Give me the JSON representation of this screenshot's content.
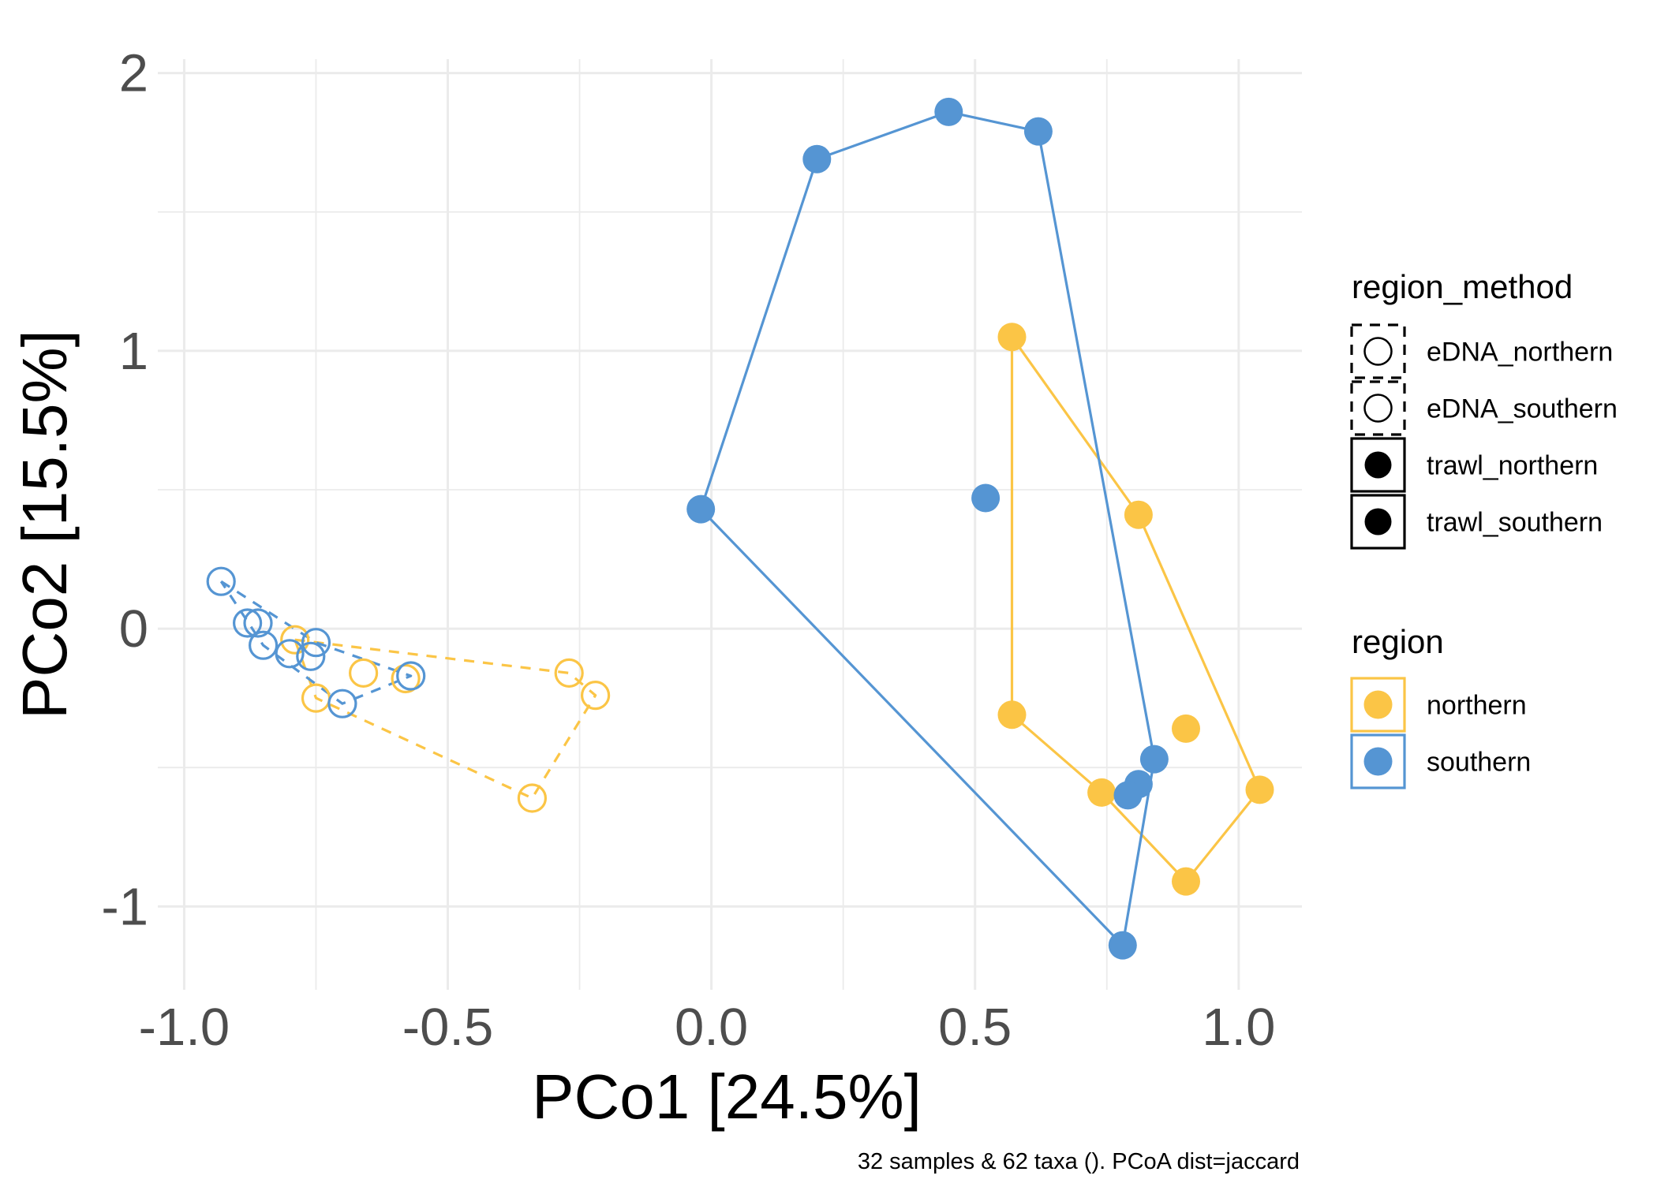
{
  "chart_data": {
    "type": "scatter",
    "title": "",
    "xlabel": "PCo1 [24.5%]",
    "ylabel": "PCo2 [15.5%]",
    "caption": "32 samples & 62 taxa (). PCoA dist=jaccard",
    "xlim": [
      -1.05,
      1.12
    ],
    "ylim": [
      -1.3,
      2.05
    ],
    "x_ticks": [
      -1.0,
      -0.5,
      0.0,
      0.5,
      1.0
    ],
    "x_tick_labels": [
      "-1.0",
      "-0.5",
      "0.0",
      "0.5",
      "1.0"
    ],
    "y_ticks": [
      -1,
      0,
      1,
      2
    ],
    "y_tick_labels": [
      "-1",
      "0",
      "1",
      "2"
    ],
    "grid": true,
    "colors": {
      "northern": "#FBC546",
      "southern": "#5595D3",
      "grid": "#EBEBEB"
    },
    "series": [
      {
        "name": "eDNA_northern",
        "region": "northern",
        "method": "eDNA",
        "marker": "open",
        "hull": "dashed",
        "points": [
          [
            -0.79,
            -0.04
          ],
          [
            -0.75,
            -0.25
          ],
          [
            -0.66,
            -0.16
          ],
          [
            -0.58,
            -0.18
          ],
          [
            -0.27,
            -0.16
          ],
          [
            -0.22,
            -0.24
          ],
          [
            -0.34,
            -0.61
          ]
        ],
        "hull_points": [
          [
            -0.79,
            -0.04
          ],
          [
            -0.27,
            -0.16
          ],
          [
            -0.22,
            -0.24
          ],
          [
            -0.34,
            -0.61
          ],
          [
            -0.75,
            -0.25
          ],
          [
            -0.79,
            -0.04
          ]
        ]
      },
      {
        "name": "eDNA_southern",
        "region": "southern",
        "method": "eDNA",
        "marker": "open",
        "hull": "dashed",
        "points": [
          [
            -0.93,
            0.17
          ],
          [
            -0.88,
            0.02
          ],
          [
            -0.86,
            0.02
          ],
          [
            -0.85,
            -0.06
          ],
          [
            -0.8,
            -0.09
          ],
          [
            -0.76,
            -0.1
          ],
          [
            -0.75,
            -0.05
          ],
          [
            -0.7,
            -0.27
          ],
          [
            -0.57,
            -0.17
          ]
        ],
        "hull_points": [
          [
            -0.93,
            0.17
          ],
          [
            -0.75,
            -0.05
          ],
          [
            -0.57,
            -0.17
          ],
          [
            -0.7,
            -0.27
          ],
          [
            -0.85,
            -0.06
          ],
          [
            -0.93,
            0.17
          ]
        ]
      },
      {
        "name": "trawl_northern",
        "region": "northern",
        "method": "trawl",
        "marker": "filled",
        "hull": "solid",
        "points": [
          [
            0.57,
            1.05
          ],
          [
            0.81,
            0.41
          ],
          [
            0.57,
            -0.31
          ],
          [
            0.9,
            -0.36
          ],
          [
            0.74,
            -0.59
          ],
          [
            1.04,
            -0.58
          ],
          [
            0.9,
            -0.91
          ]
        ],
        "hull_points": [
          [
            0.57,
            1.05
          ],
          [
            0.81,
            0.41
          ],
          [
            1.04,
            -0.58
          ],
          [
            0.9,
            -0.91
          ],
          [
            0.74,
            -0.59
          ],
          [
            0.57,
            -0.31
          ],
          [
            0.57,
            1.05
          ]
        ]
      },
      {
        "name": "trawl_southern",
        "region": "southern",
        "method": "trawl",
        "marker": "filled",
        "hull": "solid",
        "points": [
          [
            0.2,
            1.69
          ],
          [
            0.45,
            1.86
          ],
          [
            0.62,
            1.79
          ],
          [
            -0.02,
            0.43
          ],
          [
            0.52,
            0.47
          ],
          [
            0.84,
            -0.47
          ],
          [
            0.81,
            -0.56
          ],
          [
            0.79,
            -0.6
          ],
          [
            0.78,
            -1.14
          ]
        ],
        "hull_points": [
          [
            0.2,
            1.69
          ],
          [
            0.45,
            1.86
          ],
          [
            0.62,
            1.79
          ],
          [
            0.84,
            -0.47
          ],
          [
            0.78,
            -1.14
          ],
          [
            -0.02,
            0.43
          ],
          [
            0.2,
            1.69
          ]
        ]
      }
    ],
    "legends": [
      {
        "title": "region_method",
        "position": "right",
        "entries": [
          {
            "label": "eDNA_northern",
            "marker": "open",
            "line": "dashed"
          },
          {
            "label": "eDNA_southern",
            "marker": "open",
            "line": "dashed"
          },
          {
            "label": "trawl_northern",
            "marker": "filled",
            "line": "solid"
          },
          {
            "label": "trawl_southern",
            "marker": "filled",
            "line": "solid"
          }
        ]
      },
      {
        "title": "region",
        "position": "right",
        "entries": [
          {
            "label": "northern",
            "color": "#FBC546"
          },
          {
            "label": "southern",
            "color": "#5595D3"
          }
        ]
      }
    ]
  }
}
